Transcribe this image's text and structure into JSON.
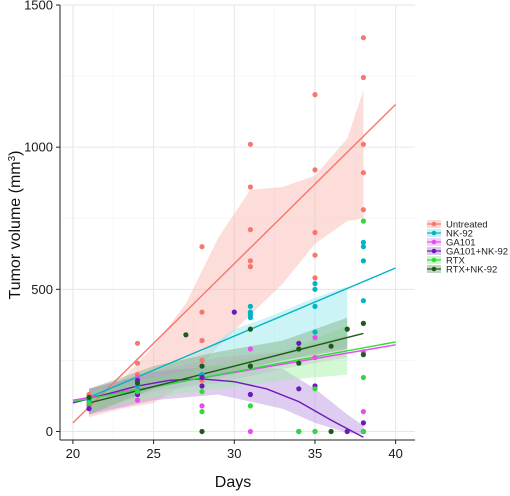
{
  "chart_data": {
    "type": "scatter",
    "title": "",
    "xlabel": "Days",
    "ylabel": "Tumor volume (mm",
    "ylabel_sup": "3",
    "ylabel_close": ")",
    "xlim": [
      19.2,
      41.2
    ],
    "ylim": [
      -30,
      1500
    ],
    "x_ticks": [
      20,
      25,
      30,
      35,
      40
    ],
    "y_ticks": [
      0,
      500,
      1000,
      1500
    ],
    "grid": true,
    "legend_position": "right",
    "series": [
      {
        "name": "Untreated",
        "color": "#F8766D",
        "band_color": "#F8B4AC",
        "fit": [
          [
            20,
            30
          ],
          [
            40,
            1150
          ]
        ],
        "band_upper": [
          [
            21,
            150
          ],
          [
            23,
            180
          ],
          [
            25,
            300
          ],
          [
            27,
            450
          ],
          [
            29,
            680
          ],
          [
            31,
            850
          ],
          [
            33,
            860
          ],
          [
            35,
            900
          ],
          [
            37,
            1030
          ],
          [
            38,
            1200
          ]
        ],
        "band_lower": [
          [
            38,
            750
          ],
          [
            37,
            740
          ],
          [
            35,
            660
          ],
          [
            33,
            520
          ],
          [
            31,
            410
          ],
          [
            29,
            300
          ],
          [
            27,
            170
          ],
          [
            25,
            100
          ],
          [
            23,
            80
          ],
          [
            21,
            50
          ]
        ],
        "points": [
          [
            21,
            95
          ],
          [
            21,
            110
          ],
          [
            21,
            130
          ],
          [
            24,
            200
          ],
          [
            24,
            240
          ],
          [
            24,
            310
          ],
          [
            28,
            180
          ],
          [
            28,
            250
          ],
          [
            28,
            320
          ],
          [
            28,
            420
          ],
          [
            28,
            650
          ],
          [
            31,
            580
          ],
          [
            31,
            600
          ],
          [
            31,
            710
          ],
          [
            31,
            860
          ],
          [
            31,
            1010
          ],
          [
            35,
            540
          ],
          [
            35,
            620
          ],
          [
            35,
            700
          ],
          [
            35,
            920
          ],
          [
            35,
            1185
          ],
          [
            38,
            780
          ],
          [
            38,
            910
          ],
          [
            38,
            1010
          ],
          [
            38,
            1245
          ],
          [
            38,
            1385
          ]
        ]
      },
      {
        "name": "NK-92",
        "color": "#00B4C4",
        "band_color": "#8FE6EC",
        "fit": [
          [
            21,
            120
          ],
          [
            40,
            575
          ]
        ],
        "band_upper": [
          [
            21,
            140
          ],
          [
            25,
            210
          ],
          [
            28,
            280
          ],
          [
            30,
            360
          ],
          [
            32,
            400
          ],
          [
            35,
            470
          ],
          [
            37,
            510
          ]
        ],
        "band_lower": [
          [
            37,
            300
          ],
          [
            35,
            280
          ],
          [
            32,
            230
          ],
          [
            30,
            200
          ],
          [
            28,
            170
          ],
          [
            25,
            140
          ],
          [
            21,
            95
          ]
        ],
        "points": [
          [
            21,
            110
          ],
          [
            24,
            160
          ],
          [
            28,
            200
          ],
          [
            31,
            400
          ],
          [
            31,
            410
          ],
          [
            31,
            420
          ],
          [
            31,
            440
          ],
          [
            35,
            350
          ],
          [
            35,
            440
          ],
          [
            35,
            500
          ],
          [
            35,
            520
          ],
          [
            38,
            460
          ],
          [
            38,
            600
          ],
          [
            38,
            650
          ],
          [
            38,
            665
          ]
        ]
      },
      {
        "name": "GA101",
        "color": "#E64DF0",
        "band_color": "#F0A6F5",
        "fit": [
          [
            20,
            110
          ],
          [
            40,
            305
          ]
        ],
        "band_upper": [
          [
            21,
            150
          ],
          [
            25,
            210
          ],
          [
            29,
            260
          ],
          [
            33,
            280
          ],
          [
            37,
            340
          ]
        ],
        "band_lower": [
          [
            37,
            260
          ],
          [
            33,
            220
          ],
          [
            29,
            170
          ],
          [
            25,
            140
          ],
          [
            21,
            60
          ]
        ],
        "points": [
          [
            21,
            90
          ],
          [
            24,
            110
          ],
          [
            24,
            190
          ],
          [
            28,
            90
          ],
          [
            31,
            0
          ],
          [
            31,
            290
          ],
          [
            35,
            0
          ],
          [
            35,
            260
          ],
          [
            35,
            330
          ],
          [
            38,
            0
          ],
          [
            38,
            70
          ],
          [
            38,
            280
          ]
        ]
      },
      {
        "name": "GA101+NK-92",
        "color": "#6B1BB8",
        "band_color": "#B88FE0",
        "fit": [
          [
            20,
            100
          ],
          [
            22,
            130
          ],
          [
            24,
            160
          ],
          [
            26,
            180
          ],
          [
            28,
            185
          ],
          [
            30,
            175
          ],
          [
            32,
            150
          ],
          [
            34,
            105
          ],
          [
            36,
            40
          ],
          [
            38,
            -20
          ]
        ],
        "band_upper": [
          [
            21,
            150
          ],
          [
            25,
            210
          ],
          [
            29,
            230
          ],
          [
            33,
            220
          ],
          [
            35,
            150
          ],
          [
            37,
            60
          ],
          [
            38,
            20
          ]
        ],
        "band_lower": [
          [
            38,
            -10
          ],
          [
            37,
            -5
          ],
          [
            35,
            30
          ],
          [
            33,
            80
          ],
          [
            29,
            130
          ],
          [
            25,
            110
          ],
          [
            21,
            60
          ]
        ],
        "points": [
          [
            21,
            80
          ],
          [
            21,
            100
          ],
          [
            24,
            130
          ],
          [
            24,
            180
          ],
          [
            28,
            160
          ],
          [
            28,
            190
          ],
          [
            30,
            420
          ],
          [
            31,
            130
          ],
          [
            34,
            0
          ],
          [
            34,
            150
          ],
          [
            34,
            310
          ],
          [
            35,
            160
          ],
          [
            37,
            0
          ],
          [
            38,
            0
          ],
          [
            38,
            30
          ]
        ]
      },
      {
        "name": "RTX",
        "color": "#2EDB38",
        "band_color": "#9CF0A0",
        "fit": [
          [
            20,
            105
          ],
          [
            40,
            315
          ]
        ],
        "band_upper": [
          [
            21,
            140
          ],
          [
            25,
            190
          ],
          [
            29,
            240
          ],
          [
            33,
            280
          ],
          [
            37,
            370
          ]
        ],
        "band_lower": [
          [
            37,
            200
          ],
          [
            33,
            180
          ],
          [
            29,
            150
          ],
          [
            25,
            120
          ],
          [
            21,
            70
          ]
        ],
        "points": [
          [
            21,
            100
          ],
          [
            24,
            140
          ],
          [
            28,
            70
          ],
          [
            28,
            140
          ],
          [
            31,
            90
          ],
          [
            31,
            230
          ],
          [
            34,
            0
          ],
          [
            35,
            0
          ],
          [
            35,
            150
          ],
          [
            38,
            0
          ],
          [
            38,
            190
          ],
          [
            38,
            740
          ]
        ]
      },
      {
        "name": "RTX+NK-92",
        "color": "#1E5A1E",
        "band_color": "#7FAF7F",
        "fit": [
          [
            21,
            100
          ],
          [
            38,
            345
          ]
        ],
        "band_upper": [
          [
            21,
            150
          ],
          [
            25,
            230
          ],
          [
            29,
            280
          ],
          [
            33,
            320
          ],
          [
            37,
            400
          ]
        ],
        "band_lower": [
          [
            37,
            290
          ],
          [
            33,
            250
          ],
          [
            29,
            200
          ],
          [
            25,
            150
          ],
          [
            21,
            60
          ]
        ],
        "points": [
          [
            21,
            120
          ],
          [
            24,
            170
          ],
          [
            27,
            340
          ],
          [
            28,
            0
          ],
          [
            28,
            230
          ],
          [
            31,
            230
          ],
          [
            31,
            360
          ],
          [
            34,
            240
          ],
          [
            34,
            290
          ],
          [
            36,
            0
          ],
          [
            36,
            300
          ],
          [
            37,
            360
          ],
          [
            38,
            270
          ],
          [
            38,
            380
          ]
        ]
      }
    ]
  }
}
